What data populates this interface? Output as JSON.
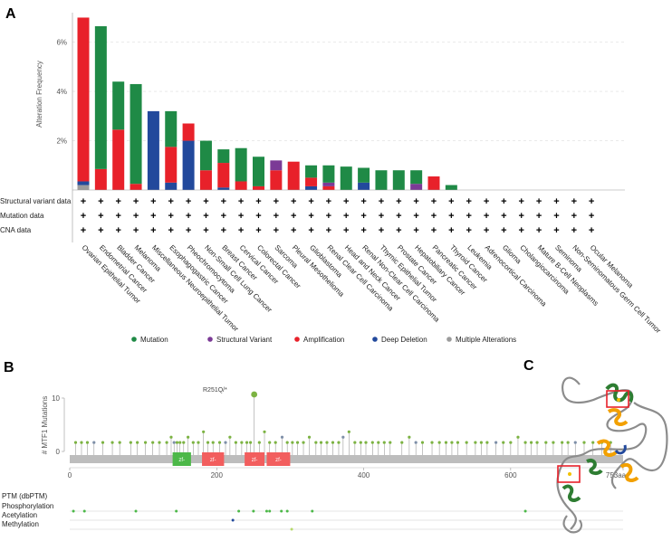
{
  "panels": {
    "a": "A",
    "b": "B",
    "c": "C"
  },
  "colors": {
    "mutation": "#1f8a46",
    "structural_variant": "#7b3a96",
    "amplification": "#e8212a",
    "deep_deletion": "#22499c",
    "multiple_alterations": "#9b9b9b",
    "domain": "#f25e5e",
    "domain_alt": "#4cb848",
    "lollipop": "#7cb342",
    "protein_bar": "#bdbdbd"
  },
  "chart_data": [
    {
      "type": "bar",
      "panel": "A",
      "ylabel": "Alteration Frequency",
      "yticks": [
        "2%",
        "4%",
        "6%"
      ],
      "ylim": [
        0,
        7.2
      ],
      "grid": true,
      "categories": [
        "Ovarian Epithelial Tumor",
        "Endometrial Cancer",
        "Bladder Cancer",
        "Melanoma",
        "Miscellaneous Neuroepithelial Tumor",
        "Esophagogastric Cancer",
        "Pheochromocytoma",
        "Non-Small Cell Lung Cancer",
        "Breast Cancer",
        "Cervical Cancer",
        "Colorectal Cancer",
        "Sarcoma",
        "Pleural Mesothelioma",
        "Glioblastoma",
        "Renal Clear Cell Carcinoma",
        "Head and Neck Cancer",
        "Renal Non-Clear Cell Carcinoma",
        "Thymic Epithelial Tumor",
        "Prostate Cancer",
        "Hepatobiliary Cancer",
        "Pancreatic Cancer",
        "Thyroid Cancer",
        "Leukemia",
        "Adrenocortical Carcinoma",
        "Glioma",
        "Cholangiocarcinoma",
        "Mature B-Cell Neoplasms",
        "Seminoma",
        "Non-Seminomatous Germ Cell Tumor",
        "Ocular Melanoma"
      ],
      "series": [
        {
          "name": "Mutation",
          "values": [
            0,
            5.8,
            1.95,
            4.05,
            0,
            1.45,
            0,
            1.2,
            0.55,
            1.35,
            1.2,
            0,
            0,
            0.5,
            0.7,
            0.95,
            0.6,
            0.8,
            0.8,
            0.55,
            0,
            0.2,
            0,
            0,
            0,
            0,
            0,
            0,
            0,
            0
          ]
        },
        {
          "name": "Structural Variant",
          "values": [
            0,
            0,
            0,
            0,
            0,
            0,
            0,
            0,
            0,
            0,
            0,
            0.4,
            0,
            0,
            0.15,
            0,
            0,
            0,
            0,
            0.25,
            0,
            0,
            0,
            0,
            0,
            0,
            0,
            0,
            0,
            0
          ]
        },
        {
          "name": "Amplification",
          "values": [
            6.65,
            0.85,
            2.45,
            0.25,
            0,
            1.45,
            0.7,
            0.8,
            1.0,
            0.35,
            0.15,
            0.8,
            1.15,
            0.35,
            0.15,
            0,
            0,
            0,
            0,
            0,
            0.55,
            0,
            0,
            0,
            0,
            0,
            0,
            0,
            0,
            0
          ]
        },
        {
          "name": "Deep Deletion",
          "values": [
            0.15,
            0,
            0,
            0,
            3.2,
            0.3,
            2.0,
            0,
            0.1,
            0,
            0,
            0,
            0,
            0.15,
            0,
            0,
            0.3,
            0,
            0,
            0,
            0,
            0,
            0,
            0,
            0,
            0,
            0,
            0,
            0,
            0
          ]
        },
        {
          "name": "Multiple Alterations",
          "values": [
            0.2,
            0,
            0,
            0,
            0,
            0,
            0,
            0,
            0,
            0,
            0,
            0,
            0,
            0,
            0,
            0,
            0,
            0,
            0,
            0,
            0,
            0,
            0,
            0,
            0,
            0,
            0,
            0,
            0,
            0
          ]
        }
      ],
      "profile_rows": [
        "Structural variant data",
        "Mutation data",
        "CNA data"
      ],
      "profile_mark": "+",
      "legend": [
        "Mutation",
        "Structural Variant",
        "Amplification",
        "Deep Deletion",
        "Multiple Alterations"
      ],
      "legend_placement": "bottom"
    },
    {
      "type": "scatter",
      "panel": "B",
      "ylabel": "# MTF1 Mutations",
      "yticks": [
        "0",
        "10"
      ],
      "xticks": [
        "0",
        "200",
        "400",
        "600",
        "753aa"
      ],
      "xlim": [
        0,
        753
      ],
      "ylim": [
        0,
        10
      ],
      "annotation": "R251Q/*",
      "domains": [
        {
          "label": "zf-",
          "start": 140,
          "end": 165
        },
        {
          "label": "zf-",
          "start": 180,
          "end": 210
        },
        {
          "label": "zf-",
          "start": 238,
          "end": 265
        },
        {
          "label": "zf-",
          "start": 268,
          "end": 300
        }
      ],
      "mutations_x": [
        8,
        16,
        24,
        33,
        45,
        58,
        68,
        83,
        92,
        103,
        113,
        122,
        132,
        138,
        142,
        146,
        150,
        155,
        161,
        168,
        175,
        182,
        188,
        195,
        204,
        212,
        218,
        226,
        234,
        241,
        246,
        251,
        258,
        265,
        272,
        280,
        289,
        296,
        303,
        310,
        318,
        326,
        335,
        342,
        350,
        358,
        366,
        372,
        380,
        388,
        396,
        403,
        412,
        420,
        428,
        436,
        452,
        462,
        471,
        480,
        493,
        503,
        512,
        520,
        528,
        540,
        552,
        560,
        568,
        580,
        590,
        600,
        610,
        620,
        628,
        636,
        648,
        658,
        670,
        678,
        688,
        700,
        712,
        724,
        736
      ],
      "mutations_y": [
        1,
        1,
        1,
        1,
        1,
        1,
        1,
        1,
        1,
        1,
        1,
        1,
        1,
        2,
        1,
        1,
        1,
        1,
        2,
        1,
        1,
        3,
        1,
        1,
        1,
        1,
        2,
        1,
        1,
        1,
        1,
        10,
        1,
        3,
        1,
        1,
        2,
        1,
        1,
        1,
        1,
        2,
        1,
        1,
        1,
        1,
        1,
        2,
        3,
        1,
        1,
        1,
        1,
        1,
        1,
        1,
        1,
        2,
        1,
        1,
        1,
        1,
        1,
        1,
        1,
        1,
        1,
        1,
        1,
        1,
        1,
        1,
        2,
        1,
        1,
        1,
        1,
        1,
        1,
        1,
        1,
        1,
        1,
        1,
        1
      ],
      "ptm_title": "PTM (dbPTM)",
      "ptm_rows": [
        {
          "label": "Phosphorylation",
          "sites": [
            5,
            20,
            90,
            145,
            230,
            250,
            268,
            272,
            288,
            296,
            330,
            620
          ],
          "color": "#4cb848"
        },
        {
          "label": "Acetylation",
          "sites": [
            222
          ],
          "color": "#22499c"
        },
        {
          "label": "Methylation",
          "sites": [
            302
          ],
          "color": "#b5d96a"
        }
      ]
    }
  ]
}
